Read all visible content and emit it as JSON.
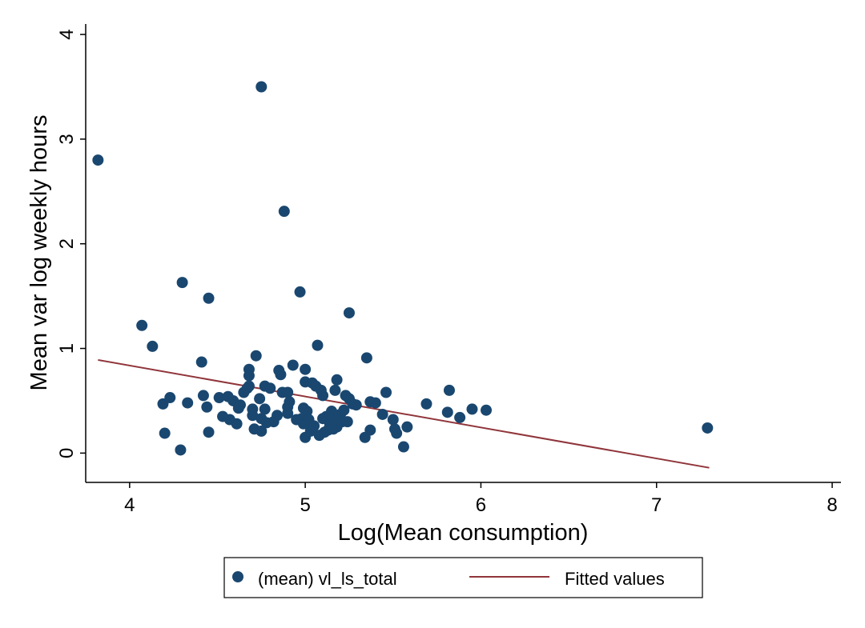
{
  "chart_data": {
    "type": "scatter",
    "xlabel": "Log(Mean consumption)",
    "ylabel": "Mean var log weekly hours",
    "xlim": [
      3.75,
      8.05
    ],
    "ylim": [
      -0.28,
      4.1
    ],
    "xticks": [
      4,
      5,
      6,
      7,
      8
    ],
    "yticks": [
      0,
      1,
      2,
      3,
      4
    ],
    "x_tick_labels": [
      "4",
      "5",
      "6",
      "7",
      "8"
    ],
    "y_tick_labels": [
      "0",
      "1",
      "2",
      "3",
      "4"
    ],
    "grid": false,
    "legend_placement": "bottom-center",
    "series": [
      {
        "name": "(mean) vl_ls_total",
        "kind": "scatter",
        "color": "#1a476f",
        "points": [
          [
            3.82,
            2.8
          ],
          [
            4.07,
            1.22
          ],
          [
            4.13,
            1.02
          ],
          [
            4.19,
            0.47
          ],
          [
            4.2,
            0.19
          ],
          [
            4.23,
            0.53
          ],
          [
            4.29,
            0.03
          ],
          [
            4.3,
            1.63
          ],
          [
            4.33,
            0.48
          ],
          [
            4.41,
            0.87
          ],
          [
            4.42,
            0.55
          ],
          [
            4.44,
            0.44
          ],
          [
            4.45,
            0.2
          ],
          [
            4.45,
            1.48
          ],
          [
            4.51,
            0.53
          ],
          [
            4.53,
            0.35
          ],
          [
            4.56,
            0.54
          ],
          [
            4.57,
            0.32
          ],
          [
            4.59,
            0.5
          ],
          [
            4.61,
            0.28
          ],
          [
            4.62,
            0.43
          ],
          [
            4.63,
            0.46
          ],
          [
            4.65,
            0.58
          ],
          [
            4.67,
            0.62
          ],
          [
            4.68,
            0.8
          ],
          [
            4.68,
            0.74
          ],
          [
            4.68,
            0.64
          ],
          [
            4.7,
            0.42
          ],
          [
            4.7,
            0.36
          ],
          [
            4.71,
            0.23
          ],
          [
            4.72,
            0.93
          ],
          [
            4.74,
            0.52
          ],
          [
            4.75,
            3.5
          ],
          [
            4.75,
            0.33
          ],
          [
            4.75,
            0.21
          ],
          [
            4.77,
            0.64
          ],
          [
            4.77,
            0.42
          ],
          [
            4.78,
            0.29
          ],
          [
            4.8,
            0.62
          ],
          [
            4.82,
            0.3
          ],
          [
            4.84,
            0.36
          ],
          [
            4.85,
            0.79
          ],
          [
            4.86,
            0.75
          ],
          [
            4.87,
            0.58
          ],
          [
            4.88,
            2.31
          ],
          [
            4.9,
            0.58
          ],
          [
            4.9,
            0.44
          ],
          [
            4.9,
            0.38
          ],
          [
            4.91,
            0.49
          ],
          [
            4.93,
            0.84
          ],
          [
            4.95,
            0.32
          ],
          [
            4.97,
            1.54
          ],
          [
            4.98,
            0.33
          ],
          [
            4.99,
            0.43
          ],
          [
            4.99,
            0.28
          ],
          [
            5.0,
            0.8
          ],
          [
            5.0,
            0.68
          ],
          [
            5.0,
            0.15
          ],
          [
            5.01,
            0.4
          ],
          [
            5.02,
            0.32
          ],
          [
            5.03,
            0.21
          ],
          [
            5.04,
            0.67
          ],
          [
            5.05,
            0.26
          ],
          [
            5.06,
            0.64
          ],
          [
            5.07,
            1.03
          ],
          [
            5.08,
            0.17
          ],
          [
            5.09,
            0.6
          ],
          [
            5.1,
            0.33
          ],
          [
            5.1,
            0.55
          ],
          [
            5.11,
            0.2
          ],
          [
            5.12,
            0.35
          ],
          [
            5.13,
            0.22
          ],
          [
            5.14,
            0.28
          ],
          [
            5.14,
            0.26
          ],
          [
            5.15,
            0.4
          ],
          [
            5.16,
            0.33
          ],
          [
            5.16,
            0.23
          ],
          [
            5.17,
            0.6
          ],
          [
            5.18,
            0.7
          ],
          [
            5.18,
            0.25
          ],
          [
            5.2,
            0.37
          ],
          [
            5.21,
            0.3
          ],
          [
            5.22,
            0.41
          ],
          [
            5.23,
            0.55
          ],
          [
            5.24,
            0.3
          ],
          [
            5.25,
            0.52
          ],
          [
            5.25,
            1.34
          ],
          [
            5.27,
            0.47
          ],
          [
            5.29,
            0.46
          ],
          [
            5.34,
            0.15
          ],
          [
            5.35,
            0.91
          ],
          [
            5.37,
            0.22
          ],
          [
            5.37,
            0.49
          ],
          [
            5.4,
            0.48
          ],
          [
            5.44,
            0.37
          ],
          [
            5.46,
            0.58
          ],
          [
            5.5,
            0.32
          ],
          [
            5.51,
            0.23
          ],
          [
            5.52,
            0.19
          ],
          [
            5.56,
            0.06
          ],
          [
            5.58,
            0.25
          ],
          [
            5.69,
            0.47
          ],
          [
            5.81,
            0.39
          ],
          [
            5.82,
            0.6
          ],
          [
            5.88,
            0.34
          ],
          [
            5.95,
            0.42
          ],
          [
            6.03,
            0.41
          ],
          [
            7.29,
            0.24
          ]
        ]
      },
      {
        "name": "Fitted values",
        "kind": "line",
        "color": "#90353b",
        "points": [
          [
            3.82,
            0.89
          ],
          [
            7.3,
            -0.14
          ]
        ]
      }
    ]
  }
}
